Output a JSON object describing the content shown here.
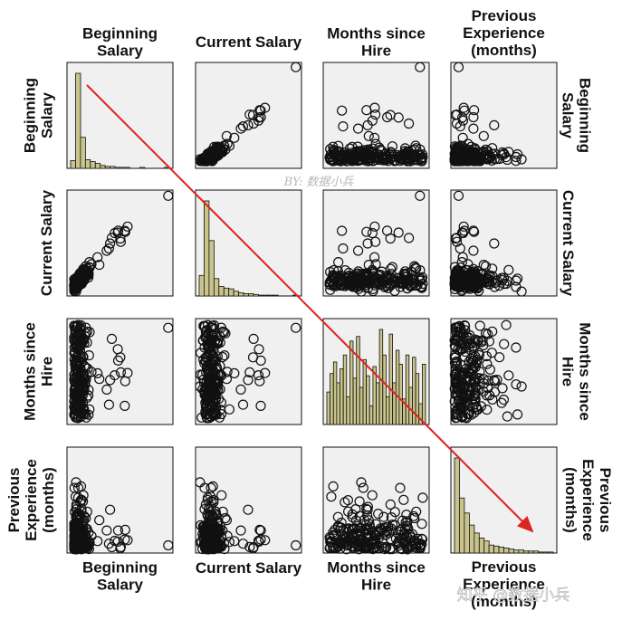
{
  "chart_data": {
    "type": "scatter-matrix",
    "variables": [
      "Beginning Salary",
      "Current Salary",
      "Months since Hire",
      "Previous Experience (months)"
    ],
    "top_labels": [
      [
        "Beginning",
        "Salary"
      ],
      [
        "Current Salary"
      ],
      [
        "Months since",
        "Hire"
      ],
      [
        "Previous",
        "Experience",
        "(months)"
      ]
    ],
    "bottom_labels": [
      [
        "Beginning",
        "Salary"
      ],
      [
        "Current Salary"
      ],
      [
        "Months since",
        "Hire"
      ],
      [
        "Previous",
        "Experience",
        "(months)"
      ]
    ],
    "left_labels": [
      [
        "Beginning",
        "Salary"
      ],
      [
        "Current Salary"
      ],
      [
        "Months since",
        "Hire"
      ],
      [
        "Previous",
        "Experience",
        "(months)"
      ]
    ],
    "right_labels": [
      [
        "Beginning",
        "Salary"
      ],
      [
        "Current Salary"
      ],
      [
        "Months since",
        "Hire"
      ],
      [
        "Previous",
        "Experience",
        "(months)"
      ]
    ],
    "ranges": [
      [
        9000,
        80000
      ],
      [
        15000,
        135000
      ],
      [
        63,
        98
      ],
      [
        0,
        480
      ]
    ],
    "diagonal": "histogram",
    "histograms": [
      [
        8,
        98,
        32,
        9,
        7,
        5,
        3,
        2,
        2,
        1,
        1,
        1,
        0,
        0,
        1,
        0,
        0,
        0,
        0,
        1
      ],
      [
        26,
        120,
        70,
        22,
        12,
        10,
        9,
        6,
        4,
        3,
        3,
        2,
        1,
        1,
        1,
        1,
        0,
        0,
        0,
        1
      ],
      [
        14,
        22,
        27,
        18,
        24,
        30,
        12,
        36,
        20,
        38,
        16,
        28,
        21,
        8,
        25,
        18,
        41,
        30,
        12,
        39,
        18,
        32,
        26,
        11,
        30,
        16,
        29,
        22,
        9,
        26
      ],
      [
        95,
        55,
        40,
        28,
        20,
        15,
        12,
        8,
        7,
        6,
        5,
        4,
        3,
        3,
        2,
        2,
        2,
        1,
        1,
        1
      ]
    ],
    "annotation": "red diagonal arrow from top-left to bottom-right across the diagonal panels"
  },
  "watermarks": {
    "center": "BY: 数据小兵",
    "bottom": "知乎 @数据小兵"
  },
  "colors": {
    "panel_background": "#f0f0f0",
    "histogram_bar": "#c9c48b",
    "arrow": "#dd2222",
    "marker": "#111111"
  }
}
